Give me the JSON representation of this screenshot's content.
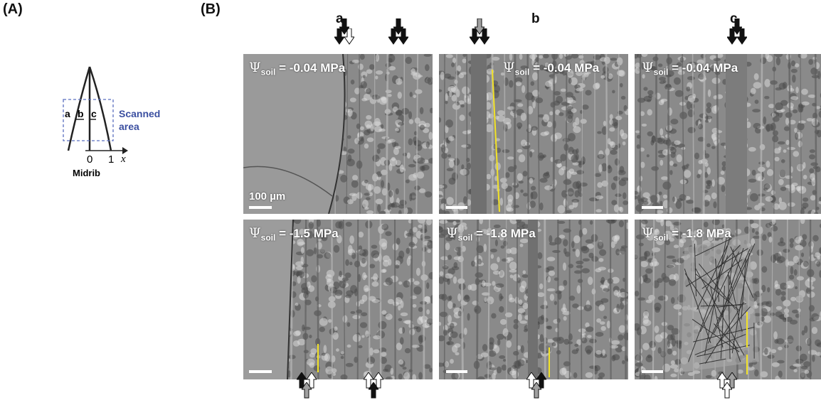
{
  "panel_a": {
    "label": "(A)",
    "regions": [
      "a",
      "b",
      "c"
    ],
    "scanned_label_line1": "Scanned",
    "scanned_label_line2": "area",
    "axis_zero": "0",
    "axis_one": "1",
    "axis_var": "x",
    "midrib": "Midrib",
    "colors": {
      "scanned": "#3b4fa0",
      "dash": "#5b6fc0"
    }
  },
  "panel_b": {
    "label": "(B)",
    "columns": [
      "a",
      "b",
      "c"
    ],
    "psi_symbol": "Ψ",
    "psi_sub": "soil",
    "top_row": [
      " = -0.04 MPa",
      " = -0.04 MPa",
      " = -0.04 MPa"
    ],
    "bottom_row": [
      " = -1.5 MPa",
      " = -1.8 MPa",
      " = -1.8 MPa"
    ],
    "scale_label": "100 µm",
    "colors": {
      "yellow_marker": "#f2e227",
      "arrow_black": "#111111",
      "arrow_gray": "#a0a0a0",
      "arrow_white": "#ffffff"
    }
  }
}
